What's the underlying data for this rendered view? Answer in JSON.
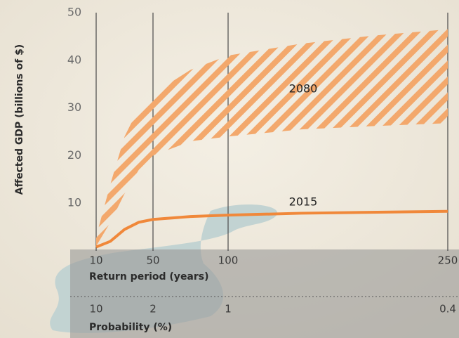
{
  "chart_data": {
    "type": "line",
    "ylabel": "Affected GDP (billions of $)",
    "xlabel": "Return period (years)",
    "x2label": "Probability (%)",
    "ylim": [
      0,
      50
    ],
    "yticks": [
      10,
      20,
      30,
      40,
      50
    ],
    "xlim": [
      10,
      250
    ],
    "xticks": [
      10,
      50,
      100,
      250
    ],
    "x2ticks": [
      10,
      2,
      1,
      0.4
    ],
    "grid": true,
    "series": [
      {
        "name": "2080",
        "color": "#f3a86c",
        "x": [
          10,
          20,
          30,
          40,
          50,
          75,
          100,
          150,
          200,
          250
        ],
        "low": [
          1,
          6,
          12,
          17,
          20,
          23,
          24,
          25.5,
          26.2,
          26.8
        ],
        "high": [
          3,
          14,
          24,
          30,
          33,
          38,
          41,
          43.5,
          45.2,
          46.5
        ]
      },
      {
        "name": "2015",
        "color": "#f0883a",
        "x": [
          10,
          20,
          30,
          40,
          50,
          75,
          100,
          150,
          250
        ],
        "values": [
          0.8,
          2,
          4.5,
          6,
          6.6,
          7.2,
          7.5,
          7.9,
          8.3
        ]
      }
    ]
  }
}
